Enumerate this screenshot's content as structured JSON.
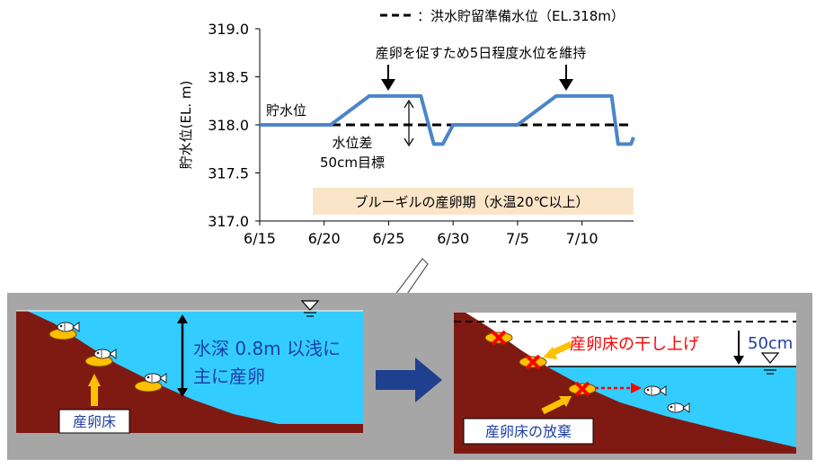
{
  "chart_data": {
    "type": "line",
    "ylabel": "貯水位(EL. m)",
    "ylim": [
      317.0,
      319.0
    ],
    "y_ticks": [
      "317.0",
      "317.5",
      "318.0",
      "318.5",
      "319.0"
    ],
    "x_ticks": [
      "6/15",
      "6/20",
      "6/25",
      "6/30",
      "7/5",
      "7/10"
    ],
    "x_tick_days": [
      0,
      5,
      10,
      15,
      20,
      25
    ],
    "xlim_days": [
      0,
      29
    ],
    "grid": false,
    "legend_position": "top",
    "legend": {
      "label": "：洪水貯留準備水位（EL.318m）"
    },
    "series": [
      {
        "name": "貯水位",
        "x_days": [
          0,
          5.5,
          8.5,
          12.5,
          13.5,
          14.2,
          15,
          20,
          23,
          27.3,
          27.8,
          28.8,
          29
        ],
        "values": [
          318.0,
          318.0,
          318.3,
          318.3,
          317.8,
          317.8,
          318.0,
          318.0,
          318.3,
          318.3,
          317.8,
          317.8,
          317.87
        ]
      },
      {
        "name": "洪水貯留準備水位",
        "x_days": [
          0,
          29
        ],
        "values": [
          318.0,
          318.0
        ]
      }
    ],
    "annotations": {
      "maintain": "産卵を促すため5日程度水位を維持",
      "level_label": "貯水位",
      "diff_line1": "水位差",
      "diff_line2": "50cm目標",
      "period": "ブルーギルの産卵期（水温20℃以上）"
    },
    "colors": {
      "line": "#4a86c8",
      "dashed": "#000000",
      "period_band": "#fbe5c8"
    }
  },
  "left_panel": {
    "depth_line1": "水深 0.8m 以浅に",
    "depth_line2": "主に産卵",
    "bed_label": "産卵床"
  },
  "right_panel": {
    "dry_label": "産卵床の干し上げ",
    "drop_label": "50cm",
    "abandon_label": "産卵床の放棄"
  },
  "colors": {
    "panel_bg": "#a6a6a6",
    "water": "#33ccff",
    "ground": "#7f1a12",
    "arrow_orange": "#ffc000",
    "cross_red": "#ff0000",
    "dry_text": "#ff0000",
    "text_blue": "#1f3fa6",
    "big_arrow": "#1f3f8f"
  },
  "icons": [
    "water-level-icon",
    "fish-icon",
    "nest-icon",
    "cross-icon"
  ]
}
